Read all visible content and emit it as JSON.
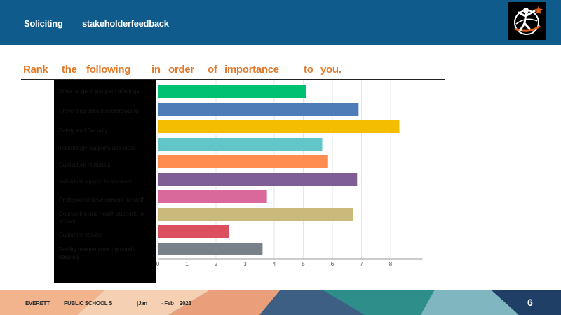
{
  "header": {
    "title_part1": "Soliciting",
    "title_part2": "stakeholderfeedback",
    "logo_icon": "school-district-logo-icon"
  },
  "question": {
    "words": [
      "Rank",
      "the",
      "following",
      "in",
      "order",
      "of",
      "importance",
      "to",
      "you."
    ]
  },
  "footer": {
    "org1": "EVERETT",
    "org2": "PUBLIC SCHOOL S",
    "date1": "|Jan",
    "date2": "- Feb",
    "year": "2023",
    "page_number": "6"
  },
  "colors": {
    "header_bg": "#0f5c8c",
    "question_text": "#e07a2a"
  },
  "chart_data": {
    "type": "bar",
    "orientation": "horizontal",
    "categories": [
      "Wide range of program offerings",
      "Preventing school overcrowding",
      "Safety and Security",
      "Technology supports and tools",
      "Curriculum materials",
      "Individual support to students",
      "Professional development for staff",
      "Counseling and health supports in school",
      "Customer service",
      "Facility maintenance / grounds keeping"
    ],
    "values": [
      5.1,
      6.9,
      8.3,
      5.65,
      5.85,
      6.85,
      3.75,
      6.7,
      2.45,
      3.6
    ],
    "bar_colors": [
      "#00c071",
      "#4d7cb6",
      "#f5bd00",
      "#62c6c8",
      "#ff8c50",
      "#7e5e95",
      "#d9689b",
      "#c9b97a",
      "#dc4f5f",
      "#78818a"
    ],
    "xlim": [
      0,
      9
    ],
    "xticks": [
      "0",
      "1",
      "2",
      "3",
      "4",
      "5",
      "6",
      "7",
      "8"
    ],
    "grid": true,
    "title": "",
    "xlabel": "",
    "ylabel": ""
  }
}
